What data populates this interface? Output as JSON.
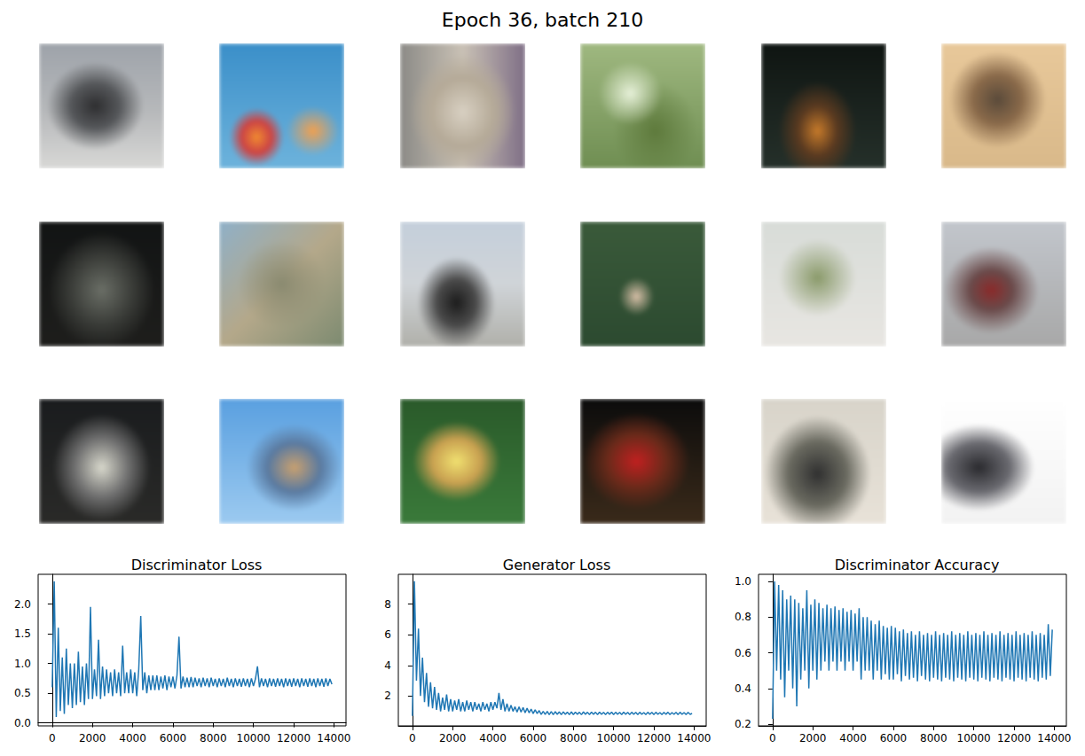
{
  "title": "Epoch 36, batch 210",
  "chart_data": [
    {
      "type": "line",
      "title": "Discriminator Loss",
      "color": "#1f77b4",
      "grid": false,
      "xlim": [
        -700,
        14600
      ],
      "xticks": [
        0,
        2000,
        4000,
        6000,
        8000,
        10000,
        12000,
        14000
      ],
      "ylim": [
        -0.05,
        2.5
      ],
      "yticks": [
        {
          "value": 0,
          "label": "0.0"
        },
        0.5,
        {
          "value": 1,
          "label": "1.0"
        },
        1.5,
        {
          "value": 2,
          "label": "2.0"
        }
      ],
      "x": [
        0,
        100,
        200,
        300,
        400,
        500,
        600,
        700,
        800,
        900,
        1000,
        1100,
        1200,
        1300,
        1400,
        1500,
        1600,
        1700,
        1800,
        1900,
        2000,
        2100,
        2200,
        2300,
        2400,
        2500,
        2600,
        2700,
        2800,
        2900,
        3000,
        3100,
        3200,
        3300,
        3400,
        3500,
        3600,
        3700,
        3800,
        3900,
        4000,
        4100,
        4200,
        4300,
        4400,
        4500,
        4600,
        4700,
        4800,
        4900,
        5000,
        5100,
        5200,
        5300,
        5400,
        5500,
        5600,
        5700,
        5800,
        5900,
        6000,
        6100,
        6200,
        6300,
        6400,
        6500,
        6600,
        6700,
        6800,
        6900,
        7000,
        7100,
        7200,
        7300,
        7400,
        7500,
        7600,
        7700,
        7800,
        7900,
        8000,
        8100,
        8200,
        8300,
        8400,
        8500,
        8600,
        8700,
        8800,
        8900,
        9000,
        9100,
        9200,
        9300,
        9400,
        9500,
        9600,
        9700,
        9800,
        9900,
        10000,
        10100,
        10200,
        10300,
        10400,
        10500,
        10600,
        10700,
        10800,
        10900,
        11000,
        11100,
        11200,
        11300,
        11400,
        11500,
        11600,
        11700,
        11800,
        11900,
        12000,
        12100,
        12200,
        12300,
        12400,
        12500,
        12600,
        12700,
        12800,
        12900,
        13000,
        13100,
        13200,
        13300,
        13400,
        13500,
        13600,
        13700,
        13800,
        13900
      ],
      "values": [
        0.6,
        2.38,
        0.1,
        1.6,
        0.2,
        1.1,
        0.15,
        1.25,
        0.3,
        1.0,
        0.25,
        1.0,
        0.3,
        1.2,
        0.35,
        0.95,
        0.3,
        1.0,
        0.4,
        1.95,
        0.4,
        0.9,
        0.45,
        1.4,
        0.4,
        0.95,
        0.45,
        0.9,
        0.5,
        0.85,
        0.45,
        0.9,
        0.5,
        0.85,
        0.45,
        1.3,
        0.5,
        0.85,
        0.5,
        0.9,
        0.5,
        0.85,
        0.45,
        0.9,
        1.8,
        0.55,
        0.85,
        0.5,
        0.8,
        0.55,
        0.8,
        0.55,
        0.8,
        0.55,
        0.78,
        0.58,
        0.8,
        0.55,
        0.78,
        0.6,
        0.78,
        0.58,
        0.8,
        1.45,
        0.58,
        0.78,
        0.6,
        0.76,
        0.6,
        0.77,
        0.6,
        0.76,
        0.62,
        0.75,
        0.6,
        0.76,
        0.62,
        0.75,
        0.6,
        0.76,
        0.62,
        0.74,
        0.6,
        0.75,
        0.62,
        0.74,
        0.6,
        0.76,
        0.62,
        0.74,
        0.6,
        0.75,
        0.62,
        0.74,
        0.61,
        0.75,
        0.62,
        0.74,
        0.6,
        0.75,
        0.62,
        0.74,
        0.95,
        0.6,
        0.75,
        0.62,
        0.74,
        0.6,
        0.75,
        0.62,
        0.74,
        0.61,
        0.75,
        0.62,
        0.74,
        0.6,
        0.75,
        0.62,
        0.74,
        0.61,
        0.75,
        0.62,
        0.74,
        0.6,
        0.75,
        0.62,
        0.74,
        0.61,
        0.75,
        0.62,
        0.74,
        0.6,
        0.75,
        0.62,
        0.74,
        0.61,
        0.75,
        0.62,
        0.74,
        0.65
      ]
    },
    {
      "type": "line",
      "title": "Generator Loss",
      "color": "#1f77b4",
      "grid": false,
      "xlim": [
        -700,
        14600
      ],
      "xticks": [
        0,
        2000,
        4000,
        6000,
        8000,
        10000,
        12000,
        14000
      ],
      "ylim": [
        0.05,
        9.95
      ],
      "yticks": [
        2,
        4,
        6,
        8
      ],
      "x": [
        0,
        100,
        200,
        300,
        400,
        500,
        600,
        700,
        800,
        900,
        1000,
        1100,
        1200,
        1300,
        1400,
        1500,
        1600,
        1700,
        1800,
        1900,
        2000,
        2100,
        2200,
        2300,
        2400,
        2500,
        2600,
        2700,
        2800,
        2900,
        3000,
        3100,
        3200,
        3300,
        3400,
        3500,
        3600,
        3700,
        3800,
        3900,
        4000,
        4100,
        4200,
        4300,
        4400,
        4500,
        4600,
        4700,
        4800,
        4900,
        5000,
        5100,
        5200,
        5300,
        5400,
        5500,
        5600,
        5700,
        5800,
        5900,
        6000,
        6100,
        6200,
        6300,
        6400,
        6500,
        6600,
        6700,
        6800,
        6900,
        7000,
        7100,
        7200,
        7300,
        7400,
        7500,
        7600,
        7700,
        7800,
        7900,
        8000,
        8100,
        8200,
        8300,
        8400,
        8500,
        8600,
        8700,
        8800,
        8900,
        9000,
        9100,
        9200,
        9300,
        9400,
        9500,
        9600,
        9700,
        9800,
        9900,
        10000,
        10100,
        10200,
        10300,
        10400,
        10500,
        10600,
        10700,
        10800,
        10900,
        11000,
        11100,
        11200,
        11300,
        11400,
        11500,
        11600,
        11700,
        11800,
        11900,
        12000,
        12100,
        12200,
        12300,
        12400,
        12500,
        12600,
        12700,
        12800,
        12900,
        13000,
        13100,
        13200,
        13300,
        13400,
        13500,
        13600,
        13700,
        13800,
        13900
      ],
      "values": [
        0.7,
        9.5,
        3.0,
        6.4,
        2.0,
        4.5,
        1.6,
        3.5,
        1.3,
        2.9,
        1.2,
        2.6,
        1.1,
        2.2,
        1.0,
        1.9,
        1.1,
        2.1,
        1.0,
        1.8,
        1.0,
        1.7,
        1.1,
        1.8,
        1.0,
        1.6,
        1.0,
        1.7,
        1.1,
        1.6,
        1.0,
        1.6,
        1.1,
        1.5,
        1.0,
        1.6,
        1.1,
        1.5,
        1.0,
        1.6,
        1.1,
        1.6,
        1.2,
        2.2,
        1.1,
        1.8,
        1.0,
        1.5,
        1.0,
        1.4,
        1.0,
        1.3,
        0.95,
        1.3,
        0.95,
        1.25,
        0.9,
        1.2,
        0.9,
        1.15,
        0.85,
        1.1,
        0.85,
        1.05,
        0.8,
        1.0,
        0.8,
        1.0,
        0.78,
        0.98,
        0.78,
        0.98,
        0.8,
        0.96,
        0.78,
        0.97,
        0.8,
        0.95,
        0.78,
        0.96,
        0.79,
        0.95,
        0.8,
        0.94,
        0.78,
        0.96,
        0.8,
        0.94,
        0.79,
        0.95,
        0.8,
        0.94,
        0.79,
        0.95,
        0.8,
        0.93,
        0.79,
        0.94,
        0.8,
        0.95,
        0.79,
        0.94,
        0.8,
        0.93,
        0.79,
        0.95,
        0.8,
        0.93,
        0.79,
        0.94,
        0.8,
        0.93,
        0.79,
        0.94,
        0.8,
        0.92,
        0.79,
        0.94,
        0.8,
        0.93,
        0.79,
        0.94,
        0.8,
        0.92,
        0.79,
        0.93,
        0.8,
        0.94,
        0.79,
        0.92,
        0.8,
        0.93,
        0.79,
        0.94,
        0.8,
        0.92,
        0.79,
        0.93,
        0.8,
        0.86
      ]
    },
    {
      "type": "line",
      "title": "Discriminator Accuracy",
      "color": "#1f77b4",
      "grid": false,
      "xlim": [
        -700,
        14600
      ],
      "xticks": [
        0,
        2000,
        4000,
        6000,
        8000,
        10000,
        12000,
        14000
      ],
      "ylim": [
        0.19,
        1.04
      ],
      "yticks": [
        0.2,
        0.4,
        0.6,
        0.8,
        {
          "value": 1,
          "label": "1.0"
        }
      ],
      "x": [
        0,
        100,
        200,
        300,
        400,
        500,
        600,
        700,
        800,
        900,
        1000,
        1100,
        1200,
        1300,
        1400,
        1500,
        1600,
        1700,
        1800,
        1900,
        2000,
        2100,
        2200,
        2300,
        2400,
        2500,
        2600,
        2700,
        2800,
        2900,
        3000,
        3100,
        3200,
        3300,
        3400,
        3500,
        3600,
        3700,
        3800,
        3900,
        4000,
        4100,
        4200,
        4300,
        4400,
        4500,
        4600,
        4700,
        4800,
        4900,
        5000,
        5100,
        5200,
        5300,
        5400,
        5500,
        5600,
        5700,
        5800,
        5900,
        6000,
        6100,
        6200,
        6300,
        6400,
        6500,
        6600,
        6700,
        6800,
        6900,
        7000,
        7100,
        7200,
        7300,
        7400,
        7500,
        7600,
        7700,
        7800,
        7900,
        8000,
        8100,
        8200,
        8300,
        8400,
        8500,
        8600,
        8700,
        8800,
        8900,
        9000,
        9100,
        9200,
        9300,
        9400,
        9500,
        9600,
        9700,
        9800,
        9900,
        10000,
        10100,
        10200,
        10300,
        10400,
        10500,
        10600,
        10700,
        10800,
        10900,
        11000,
        11100,
        11200,
        11300,
        11400,
        11500,
        11600,
        11700,
        11800,
        11900,
        12000,
        12100,
        12200,
        12300,
        12400,
        12500,
        12600,
        12700,
        12800,
        12900,
        13000,
        13100,
        13200,
        13300,
        13400,
        13500,
        13600,
        13700,
        13800,
        13900
      ],
      "values": [
        0.23,
        1.0,
        0.5,
        0.98,
        0.45,
        0.95,
        0.35,
        0.9,
        0.5,
        0.92,
        0.4,
        0.9,
        0.3,
        0.88,
        0.45,
        0.85,
        0.5,
        0.95,
        0.4,
        0.87,
        0.5,
        0.9,
        0.45,
        0.88,
        0.5,
        0.85,
        0.55,
        0.87,
        0.5,
        0.85,
        0.55,
        0.86,
        0.5,
        0.84,
        0.55,
        0.85,
        0.5,
        0.83,
        0.55,
        0.84,
        0.5,
        0.82,
        0.55,
        0.85,
        0.45,
        0.8,
        0.5,
        0.8,
        0.5,
        0.78,
        0.45,
        0.76,
        0.5,
        0.78,
        0.45,
        0.75,
        0.48,
        0.74,
        0.45,
        0.75,
        0.45,
        0.74,
        0.48,
        0.72,
        0.44,
        0.73,
        0.47,
        0.71,
        0.45,
        0.72,
        0.46,
        0.7,
        0.44,
        0.72,
        0.47,
        0.7,
        0.45,
        0.71,
        0.44,
        0.7,
        0.46,
        0.72,
        0.45,
        0.7,
        0.44,
        0.71,
        0.46,
        0.7,
        0.45,
        0.72,
        0.44,
        0.7,
        0.46,
        0.71,
        0.45,
        0.7,
        0.44,
        0.72,
        0.46,
        0.7,
        0.45,
        0.71,
        0.44,
        0.7,
        0.46,
        0.72,
        0.45,
        0.7,
        0.44,
        0.71,
        0.46,
        0.7,
        0.45,
        0.72,
        0.44,
        0.7,
        0.46,
        0.71,
        0.45,
        0.7,
        0.44,
        0.72,
        0.46,
        0.7,
        0.45,
        0.71,
        0.44,
        0.7,
        0.46,
        0.72,
        0.45,
        0.7,
        0.44,
        0.71,
        0.46,
        0.7,
        0.45,
        0.76,
        0.47,
        0.73
      ]
    }
  ]
}
